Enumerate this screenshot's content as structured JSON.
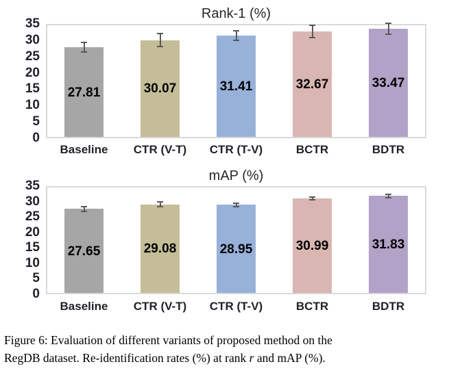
{
  "colors": {
    "error_bar": "#595959",
    "plot_border": "#d9d9d9",
    "axis_text": "#1f2028",
    "title_text": "#262626",
    "data_label_text": "#000000"
  },
  "chart_data": [
    {
      "type": "bar",
      "title": "Rank-1 (%)",
      "categories": [
        "Baseline",
        "CTR (V-T)",
        "CTR (T-V)",
        "BCTR",
        "BDTR"
      ],
      "values": [
        27.81,
        30.07,
        31.41,
        32.67,
        33.47
      ],
      "data_labels": [
        "27.81",
        "30.07",
        "31.41",
        "32.67",
        "33.47"
      ],
      "error_bars": [
        1.5,
        2.0,
        1.4,
        1.9,
        1.7
      ],
      "bar_colors": [
        "#a6a6a6",
        "#c4bd97",
        "#98b1d9",
        "#d9b6b2",
        "#b2a2c7"
      ],
      "xlabel": "",
      "ylabel": "",
      "ylim": [
        0,
        35
      ],
      "ytick_step": 5,
      "grid": false,
      "legend_position": "none",
      "data_label_position": "center"
    },
    {
      "type": "bar",
      "title": "mAP (%)",
      "categories": [
        "Baseline",
        "CTR (V-T)",
        "CTR (T-V)",
        "BCTR",
        "BDTR"
      ],
      "values": [
        27.65,
        29.08,
        28.95,
        30.99,
        31.83
      ],
      "data_labels": [
        "27.65",
        "29.08",
        "28.95",
        "30.99",
        "31.83"
      ],
      "error_bars": [
        0.8,
        0.8,
        0.6,
        0.5,
        0.5
      ],
      "bar_colors": [
        "#a6a6a6",
        "#c4bd97",
        "#98b1d9",
        "#d9b6b2",
        "#b2a2c7"
      ],
      "xlabel": "",
      "ylabel": "",
      "ylim": [
        0,
        35
      ],
      "ytick_step": 5,
      "grid": false,
      "legend_position": "none",
      "data_label_position": "center"
    }
  ],
  "caption": {
    "line1": "Figure 6: Evaluation of different variants of proposed method on the",
    "line2_before": "RegDB dataset. Re-identification rates (%) at rank ",
    "line2_rank_var": "r",
    "line2_after": " and mAP (%)."
  }
}
